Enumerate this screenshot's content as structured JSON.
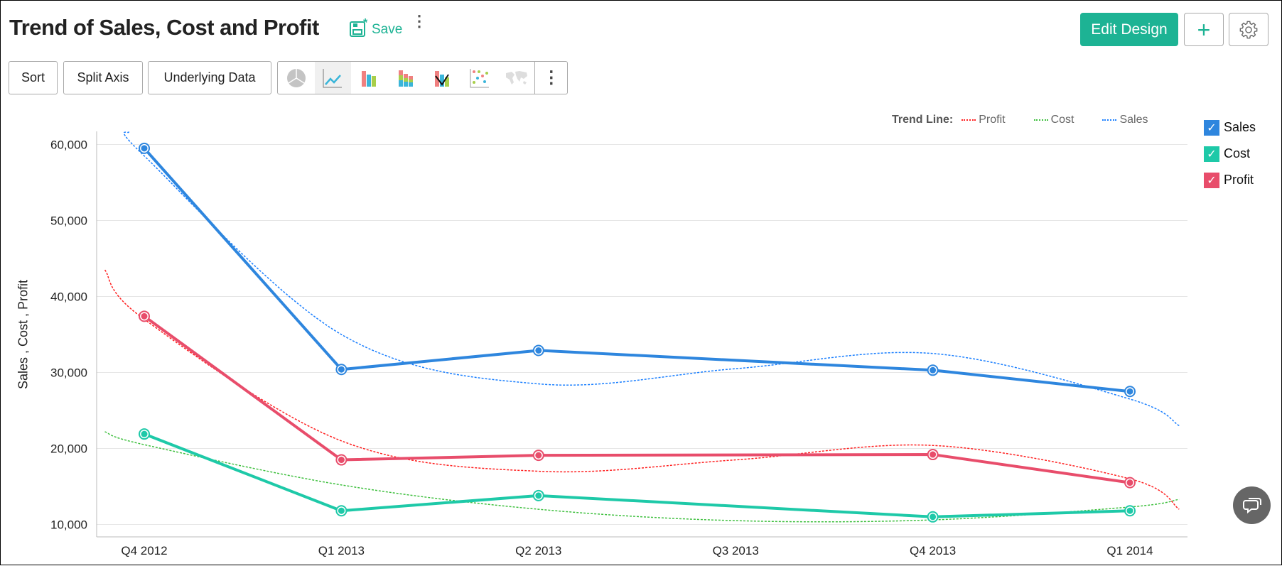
{
  "header": {
    "title": "Trend of Sales, Cost and Profit",
    "save_label": "Save",
    "edit_design_label": "Edit Design"
  },
  "toolbar": {
    "sort_label": "Sort",
    "split_axis_label": "Split Axis",
    "underlying_data_label": "Underlying Data",
    "chart_types": [
      "pie-chart-icon",
      "line-chart-icon",
      "bar-chart-icon",
      "stacked-bar-chart-icon",
      "combo-chart-icon",
      "scatter-chart-icon",
      "map-chart-icon"
    ],
    "active_chart_type": "line-chart-icon"
  },
  "trend_legend": {
    "label": "Trend Line:",
    "items": [
      {
        "name": "Profit",
        "color": "#ff2020"
      },
      {
        "name": "Cost",
        "color": "#40c040"
      },
      {
        "name": "Sales",
        "color": "#1a7fff"
      }
    ]
  },
  "chart_data": {
    "type": "line",
    "title": "Trend of Sales, Cost and Profit",
    "ylabel": "Sales , Cost , Profit",
    "xlabel": "",
    "categories": [
      "Q4 2012",
      "Q1 2013",
      "Q2 2013",
      "Q3 2013",
      "Q4 2013",
      "Q1 2014"
    ],
    "ylim": [
      8500,
      62000
    ],
    "yticks": [
      "10,000",
      "20,000",
      "30,000",
      "40,000",
      "50,000",
      "60,000"
    ],
    "ytick_values": [
      10000,
      20000,
      30000,
      40000,
      50000,
      60000
    ],
    "grid": true,
    "legend_position": "right",
    "series": [
      {
        "name": "Sales",
        "color": "#2e86de",
        "values": [
          59500,
          30400,
          32900,
          null,
          30300,
          27500
        ],
        "checked": true
      },
      {
        "name": "Cost",
        "color": "#1ec9a8",
        "values": [
          21900,
          11800,
          13800,
          null,
          11000,
          11800
        ],
        "checked": true
      },
      {
        "name": "Profit",
        "color": "#e84d6b",
        "values": [
          37400,
          18500,
          19100,
          null,
          19200,
          15500
        ],
        "checked": true
      }
    ],
    "trend_lines": [
      {
        "name": "Profit",
        "color": "#ff2020",
        "x": [
          -0.2,
          0,
          1,
          2,
          3,
          4,
          5,
          5.25
        ],
        "values": [
          43500,
          37000,
          21000,
          17000,
          18500,
          20400,
          16000,
          12000
        ]
      },
      {
        "name": "Cost",
        "color": "#40c040",
        "x": [
          -0.2,
          0,
          1,
          2,
          3,
          4,
          5,
          5.25
        ],
        "values": [
          22200,
          20500,
          15200,
          12000,
          10500,
          10600,
          12300,
          13300
        ]
      },
      {
        "name": "Sales",
        "color": "#1a7fff",
        "x": [
          -0.08,
          0,
          1,
          2,
          3,
          4,
          5,
          5.25
        ],
        "values": [
          61700,
          58500,
          35000,
          28500,
          30500,
          32500,
          26500,
          23000
        ]
      }
    ]
  }
}
